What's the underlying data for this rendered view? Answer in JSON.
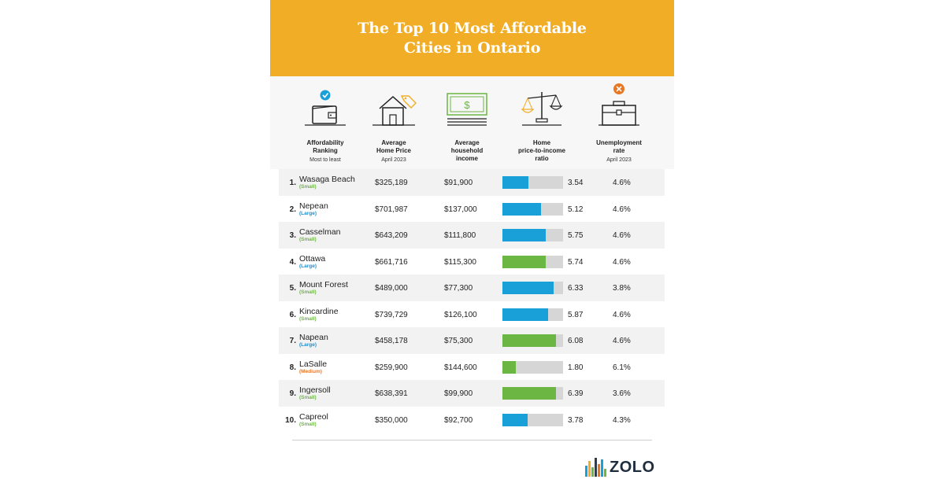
{
  "title": "The Top 10 Most Affordable\nCities in Ontario",
  "brand": {
    "name": "ZOLO",
    "colors": [
      "#f1ad25",
      "#1aa0d8",
      "#6cb644",
      "#e87722",
      "#2d3e50"
    ]
  },
  "colors": {
    "banner": "#f1ad25",
    "small": "#6cb644",
    "large": "#1a8fcf",
    "medium": "#e87722",
    "bar_blue": "#1aa0d8",
    "bar_green": "#6cb644",
    "bar_track": "#d6d6d6"
  },
  "columns": [
    {
      "title": "Affordability\nRanking",
      "subtitle": "Most to least",
      "icon": "wallet-check-icon"
    },
    {
      "title": "Average\nHome Price",
      "subtitle": "April 2023",
      "icon": "house-tag-icon"
    },
    {
      "title": "Average\nhousehold\nincome",
      "subtitle": "",
      "icon": "banknote-icon"
    },
    {
      "title": "Home\nprice-to-income\nratio",
      "subtitle": "",
      "icon": "scales-icon"
    },
    {
      "title": "Unemployment\nrate",
      "subtitle": "April 2023",
      "icon": "briefcase-x-icon"
    }
  ],
  "chart_data": {
    "type": "table",
    "columns": [
      "Affordability Ranking",
      "Average Home Price",
      "Average household income",
      "Home price-to-income ratio",
      "Unemployment rate"
    ],
    "rows": [
      {
        "rank": "1.",
        "city": "Wasaga Beach",
        "size": "(Small)",
        "size_type": "small",
        "price": "$325,189",
        "income": "$91,900",
        "ratio": 3.54,
        "ratio_label": "3.54",
        "bar_fill": 0.43,
        "bar_color": "blue",
        "unemployment": "4.6%"
      },
      {
        "rank": "2.",
        "city": "Nepean",
        "size": "(Large)",
        "size_type": "large",
        "price": "$701,987",
        "income": "$137,000",
        "ratio": 5.12,
        "ratio_label": "5.12",
        "bar_fill": 0.64,
        "bar_color": "blue",
        "unemployment": "4.6%"
      },
      {
        "rank": "3.",
        "city": "Casselman",
        "size": "(Small)",
        "size_type": "small",
        "price": "$643,209",
        "income": "$111,800",
        "ratio": 5.75,
        "ratio_label": "5.75",
        "bar_fill": 0.72,
        "bar_color": "blue",
        "unemployment": "4.6%"
      },
      {
        "rank": "4.",
        "city": "Ottawa",
        "size": "(Large)",
        "size_type": "large",
        "price": "$661,716",
        "income": "$115,300",
        "ratio": 5.74,
        "ratio_label": "5.74",
        "bar_fill": 0.72,
        "bar_color": "green",
        "unemployment": "4.6%"
      },
      {
        "rank": "5.",
        "city": "Mount Forest",
        "size": "(Small)",
        "size_type": "small",
        "price": "$489,000",
        "income": "$77,300",
        "ratio": 6.33,
        "ratio_label": "6.33",
        "bar_fill": 0.85,
        "bar_color": "blue",
        "unemployment": "3.8%"
      },
      {
        "rank": "6.",
        "city": "Kincardine",
        "size": "(Small)",
        "size_type": "small",
        "price": "$739,729",
        "income": "$126,100",
        "ratio": 5.87,
        "ratio_label": "5.87",
        "bar_fill": 0.75,
        "bar_color": "blue",
        "unemployment": "4.6%"
      },
      {
        "rank": "7.",
        "city": "Napean",
        "size": "(Large)",
        "size_type": "large",
        "price": "$458,178",
        "income": "$75,300",
        "ratio": 6.08,
        "ratio_label": "6.08",
        "bar_fill": 0.88,
        "bar_color": "green",
        "unemployment": "4.6%"
      },
      {
        "rank": "8.",
        "city": "LaSalle",
        "size": "(Medium)",
        "size_type": "medium",
        "price": "$259,900",
        "income": "$144,600",
        "ratio": 1.8,
        "ratio_label": "1.80",
        "bar_fill": 0.22,
        "bar_color": "green",
        "unemployment": "6.1%"
      },
      {
        "rank": "9.",
        "city": "Ingersoll",
        "size": "(Small)",
        "size_type": "small",
        "price": "$638,391",
        "income": "$99,900",
        "ratio": 6.39,
        "ratio_label": "6.39",
        "bar_fill": 0.88,
        "bar_color": "green",
        "unemployment": "3.6%"
      },
      {
        "rank": "10.",
        "city": "Capreol",
        "size": "(Small)",
        "size_type": "small",
        "price": "$350,000",
        "income": "$92,700",
        "ratio": 3.78,
        "ratio_label": "3.78",
        "bar_fill": 0.42,
        "bar_color": "blue",
        "unemployment": "4.3%"
      }
    ]
  }
}
